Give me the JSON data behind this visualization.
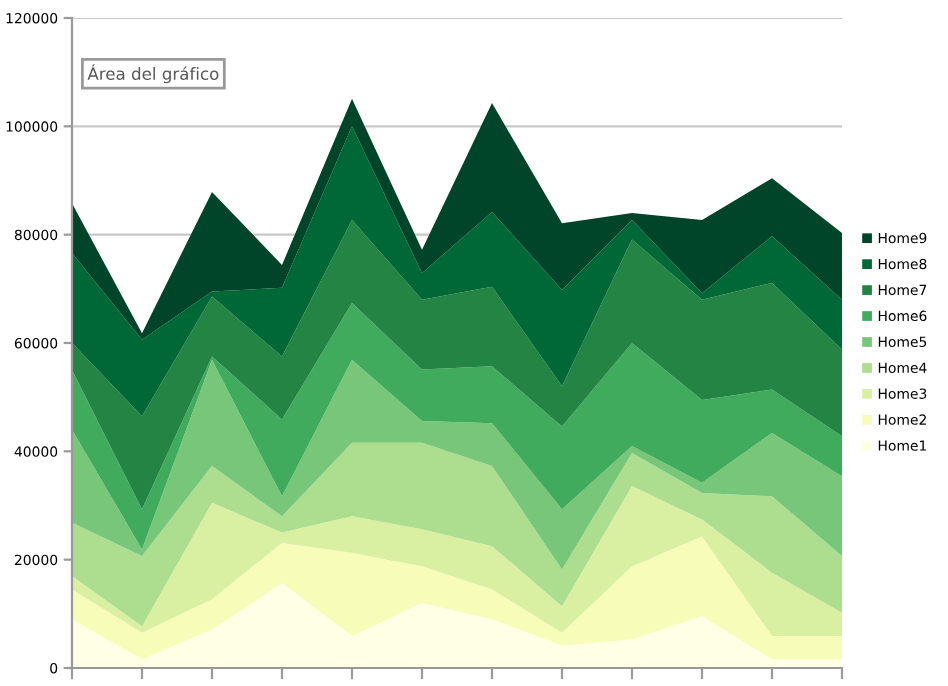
{
  "chart_data": {
    "type": "area",
    "stacked": true,
    "categories": [
      null,
      null,
      null,
      null,
      null,
      null,
      null,
      null,
      null,
      null,
      null,
      null
    ],
    "series": [
      {
        "name": "Home1",
        "color": "#ffffe5",
        "values": [
          9000,
          1600,
          7100,
          15700,
          5900,
          12000,
          9000,
          4100,
          5300,
          9600,
          1600,
          1600
        ]
      },
      {
        "name": "Home2",
        "color": "#f7fcb9",
        "values": [
          5500,
          4900,
          5600,
          7400,
          15400,
          6800,
          5500,
          2400,
          13500,
          14700,
          4300,
          4300
        ]
      },
      {
        "name": "Home3",
        "color": "#d9f0a3",
        "values": [
          2500,
          1200,
          17800,
          1900,
          6700,
          6800,
          8000,
          4900,
          14800,
          3100,
          11700,
          4300
        ]
      },
      {
        "name": "Home4",
        "color": "#addd8e",
        "values": [
          9800,
          13000,
          6800,
          3000,
          13600,
          16000,
          14800,
          6800,
          6100,
          4900,
          14100,
          10500
        ]
      },
      {
        "name": "Home5",
        "color": "#78c679",
        "values": [
          17200,
          1200,
          19600,
          3700,
          15300,
          4000,
          7900,
          11100,
          1300,
          1900,
          11700,
          14700
        ]
      },
      {
        "name": "Home6",
        "color": "#41ab5d",
        "values": [
          11000,
          7400,
          600,
          14200,
          10500,
          9500,
          10500,
          15300,
          19000,
          15300,
          8000,
          7400
        ]
      },
      {
        "name": "Home7",
        "color": "#238443",
        "values": [
          5000,
          17200,
          11100,
          11600,
          15300,
          12900,
          14700,
          7400,
          19100,
          18500,
          19700,
          16000
        ]
      },
      {
        "name": "Home8",
        "color": "#006837",
        "values": [
          16600,
          14100,
          900,
          12700,
          17300,
          4900,
          13800,
          17800,
          3600,
          1200,
          8600,
          9200
        ]
      },
      {
        "name": "Home9",
        "color": "#004529",
        "values": [
          9200,
          1200,
          18400,
          4200,
          5100,
          4300,
          20100,
          12300,
          1300,
          13500,
          10700,
          12300
        ]
      }
    ],
    "ylim": [
      0,
      120000
    ],
    "yticks": [
      0,
      20000,
      40000,
      60000,
      80000,
      100000,
      120000
    ],
    "grid": "y",
    "legend": "right",
    "annotations": [
      "Área del gráfico"
    ]
  }
}
